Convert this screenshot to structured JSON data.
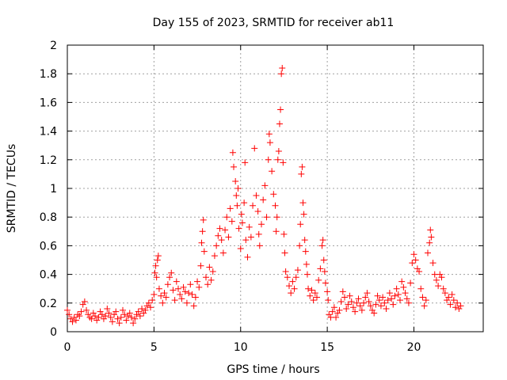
{
  "chart_data": {
    "type": "scatter",
    "title": "Day 155 of 2023, SRMTID for receiver ab11",
    "xlabel": "GPS time / hours",
    "ylabel": "SRMTID / TECUs",
    "xlim": [
      0,
      24
    ],
    "ylim": [
      0,
      2
    ],
    "xticks": [
      0,
      5,
      10,
      15,
      20
    ],
    "xtick_labels": [
      "0",
      "5",
      "10",
      "15",
      "20"
    ],
    "yticks": [
      0,
      0.2,
      0.4,
      0.6,
      0.8,
      1,
      1.2,
      1.4,
      1.6,
      1.8,
      2
    ],
    "ytick_labels": [
      "0",
      "0.2",
      "0.4",
      "0.6",
      "0.8",
      "1",
      "1.2",
      "1.4",
      "1.6",
      "1.8",
      "2"
    ],
    "grid": true,
    "marker": "plus",
    "color": "#ff0000",
    "series": [
      {
        "name": "SRMTID",
        "points": [
          [
            0.0,
            0.15
          ],
          [
            0.1,
            0.12
          ],
          [
            0.2,
            0.09
          ],
          [
            0.3,
            0.07
          ],
          [
            0.4,
            0.1
          ],
          [
            0.5,
            0.08
          ],
          [
            0.6,
            0.12
          ],
          [
            0.7,
            0.11
          ],
          [
            0.8,
            0.14
          ],
          [
            0.9,
            0.19
          ],
          [
            1.0,
            0.21
          ],
          [
            1.1,
            0.15
          ],
          [
            1.2,
            0.12
          ],
          [
            1.3,
            0.1
          ],
          [
            1.4,
            0.09
          ],
          [
            1.5,
            0.13
          ],
          [
            1.6,
            0.11
          ],
          [
            1.7,
            0.08
          ],
          [
            1.8,
            0.1
          ],
          [
            1.9,
            0.14
          ],
          [
            2.0,
            0.12
          ],
          [
            2.1,
            0.09
          ],
          [
            2.2,
            0.11
          ],
          [
            2.3,
            0.16
          ],
          [
            2.4,
            0.13
          ],
          [
            2.5,
            0.1
          ],
          [
            2.6,
            0.07
          ],
          [
            2.7,
            0.12
          ],
          [
            2.8,
            0.14
          ],
          [
            2.9,
            0.09
          ],
          [
            3.0,
            0.06
          ],
          [
            3.1,
            0.1
          ],
          [
            3.2,
            0.15
          ],
          [
            3.3,
            0.12
          ],
          [
            3.4,
            0.08
          ],
          [
            3.5,
            0.11
          ],
          [
            3.6,
            0.13
          ],
          [
            3.7,
            0.1
          ],
          [
            3.8,
            0.06
          ],
          [
            3.9,
            0.09
          ],
          [
            4.0,
            0.12
          ],
          [
            4.1,
            0.14
          ],
          [
            4.2,
            0.11
          ],
          [
            4.3,
            0.16
          ],
          [
            4.4,
            0.13
          ],
          [
            4.5,
            0.15
          ],
          [
            4.6,
            0.18
          ],
          [
            4.7,
            0.2
          ],
          [
            4.8,
            0.17
          ],
          [
            4.9,
            0.22
          ],
          [
            5.0,
            0.26
          ],
          [
            5.05,
            0.41
          ],
          [
            5.1,
            0.46
          ],
          [
            5.15,
            0.38
          ],
          [
            5.2,
            0.5
          ],
          [
            5.25,
            0.53
          ],
          [
            5.3,
            0.3
          ],
          [
            5.4,
            0.25
          ],
          [
            5.5,
            0.2
          ],
          [
            5.6,
            0.27
          ],
          [
            5.7,
            0.24
          ],
          [
            5.8,
            0.33
          ],
          [
            5.9,
            0.38
          ],
          [
            6.0,
            0.41
          ],
          [
            6.1,
            0.29
          ],
          [
            6.2,
            0.22
          ],
          [
            6.3,
            0.35
          ],
          [
            6.4,
            0.3
          ],
          [
            6.5,
            0.26
          ],
          [
            6.6,
            0.23
          ],
          [
            6.7,
            0.31
          ],
          [
            6.8,
            0.28
          ],
          [
            6.9,
            0.2
          ],
          [
            7.0,
            0.27
          ],
          [
            7.1,
            0.33
          ],
          [
            7.2,
            0.26
          ],
          [
            7.3,
            0.18
          ],
          [
            7.4,
            0.24
          ],
          [
            7.5,
            0.35
          ],
          [
            7.6,
            0.31
          ],
          [
            7.7,
            0.46
          ],
          [
            7.75,
            0.62
          ],
          [
            7.8,
            0.7
          ],
          [
            7.85,
            0.78
          ],
          [
            7.9,
            0.56
          ],
          [
            8.0,
            0.38
          ],
          [
            8.1,
            0.33
          ],
          [
            8.2,
            0.45
          ],
          [
            8.3,
            0.36
          ],
          [
            8.4,
            0.42
          ],
          [
            8.5,
            0.53
          ],
          [
            8.6,
            0.6
          ],
          [
            8.7,
            0.67
          ],
          [
            8.8,
            0.72
          ],
          [
            8.9,
            0.64
          ],
          [
            9.0,
            0.55
          ],
          [
            9.1,
            0.71
          ],
          [
            9.2,
            0.8
          ],
          [
            9.3,
            0.66
          ],
          [
            9.4,
            0.86
          ],
          [
            9.5,
            0.77
          ],
          [
            9.55,
            1.25
          ],
          [
            9.6,
            1.15
          ],
          [
            9.7,
            1.05
          ],
          [
            9.75,
            0.95
          ],
          [
            9.8,
            0.88
          ],
          [
            9.85,
            1.0
          ],
          [
            9.9,
            0.72
          ],
          [
            10.0,
            0.58
          ],
          [
            10.05,
            0.82
          ],
          [
            10.1,
            0.76
          ],
          [
            10.2,
            0.9
          ],
          [
            10.25,
            1.18
          ],
          [
            10.3,
            0.64
          ],
          [
            10.4,
            0.52
          ],
          [
            10.5,
            0.73
          ],
          [
            10.6,
            0.66
          ],
          [
            10.7,
            0.88
          ],
          [
            10.8,
            1.28
          ],
          [
            10.9,
            0.95
          ],
          [
            11.0,
            0.84
          ],
          [
            11.05,
            0.68
          ],
          [
            11.1,
            0.6
          ],
          [
            11.2,
            0.75
          ],
          [
            11.3,
            0.92
          ],
          [
            11.4,
            1.02
          ],
          [
            11.5,
            0.8
          ],
          [
            11.6,
            1.2
          ],
          [
            11.65,
            1.38
          ],
          [
            11.7,
            1.32
          ],
          [
            11.8,
            1.12
          ],
          [
            11.9,
            0.96
          ],
          [
            12.0,
            0.88
          ],
          [
            12.05,
            0.7
          ],
          [
            12.1,
            0.8
          ],
          [
            12.15,
            1.2
          ],
          [
            12.2,
            1.26
          ],
          [
            12.25,
            1.45
          ],
          [
            12.3,
            1.55
          ],
          [
            12.35,
            1.8
          ],
          [
            12.4,
            1.84
          ],
          [
            12.45,
            1.18
          ],
          [
            12.5,
            0.68
          ],
          [
            12.55,
            0.55
          ],
          [
            12.6,
            0.42
          ],
          [
            12.7,
            0.38
          ],
          [
            12.8,
            0.32
          ],
          [
            12.9,
            0.27
          ],
          [
            13.0,
            0.35
          ],
          [
            13.1,
            0.3
          ],
          [
            13.2,
            0.38
          ],
          [
            13.3,
            0.43
          ],
          [
            13.4,
            0.6
          ],
          [
            13.45,
            0.75
          ],
          [
            13.5,
            1.1
          ],
          [
            13.55,
            1.15
          ],
          [
            13.6,
            0.9
          ],
          [
            13.65,
            0.82
          ],
          [
            13.7,
            0.64
          ],
          [
            13.75,
            0.56
          ],
          [
            13.8,
            0.47
          ],
          [
            13.85,
            0.4
          ],
          [
            13.9,
            0.3
          ],
          [
            14.0,
            0.25
          ],
          [
            14.1,
            0.29
          ],
          [
            14.2,
            0.22
          ],
          [
            14.3,
            0.27
          ],
          [
            14.4,
            0.24
          ],
          [
            14.5,
            0.36
          ],
          [
            14.6,
            0.44
          ],
          [
            14.7,
            0.6
          ],
          [
            14.75,
            0.64
          ],
          [
            14.8,
            0.5
          ],
          [
            14.85,
            0.42
          ],
          [
            14.9,
            0.34
          ],
          [
            15.0,
            0.28
          ],
          [
            15.05,
            0.22
          ],
          [
            15.1,
            0.12
          ],
          [
            15.2,
            0.1
          ],
          [
            15.3,
            0.14
          ],
          [
            15.4,
            0.17
          ],
          [
            15.5,
            0.1
          ],
          [
            15.6,
            0.13
          ],
          [
            15.7,
            0.15
          ],
          [
            15.8,
            0.21
          ],
          [
            15.9,
            0.28
          ],
          [
            16.0,
            0.24
          ],
          [
            16.1,
            0.16
          ],
          [
            16.2,
            0.19
          ],
          [
            16.3,
            0.25
          ],
          [
            16.4,
            0.21
          ],
          [
            16.5,
            0.17
          ],
          [
            16.6,
            0.14
          ],
          [
            16.7,
            0.2
          ],
          [
            16.8,
            0.23
          ],
          [
            16.9,
            0.18
          ],
          [
            17.0,
            0.15
          ],
          [
            17.1,
            0.2
          ],
          [
            17.2,
            0.24
          ],
          [
            17.3,
            0.27
          ],
          [
            17.4,
            0.21
          ],
          [
            17.5,
            0.18
          ],
          [
            17.6,
            0.15
          ],
          [
            17.7,
            0.13
          ],
          [
            17.8,
            0.19
          ],
          [
            17.9,
            0.25
          ],
          [
            18.0,
            0.22
          ],
          [
            18.1,
            0.18
          ],
          [
            18.2,
            0.24
          ],
          [
            18.3,
            0.2
          ],
          [
            18.4,
            0.16
          ],
          [
            18.5,
            0.22
          ],
          [
            18.6,
            0.27
          ],
          [
            18.7,
            0.23
          ],
          [
            18.8,
            0.19
          ],
          [
            18.9,
            0.25
          ],
          [
            19.0,
            0.3
          ],
          [
            19.1,
            0.26
          ],
          [
            19.2,
            0.22
          ],
          [
            19.3,
            0.35
          ],
          [
            19.4,
            0.31
          ],
          [
            19.5,
            0.27
          ],
          [
            19.6,
            0.23
          ],
          [
            19.7,
            0.2
          ],
          [
            19.8,
            0.34
          ],
          [
            19.9,
            0.48
          ],
          [
            20.0,
            0.54
          ],
          [
            20.1,
            0.5
          ],
          [
            20.2,
            0.44
          ],
          [
            20.3,
            0.42
          ],
          [
            20.4,
            0.3
          ],
          [
            20.5,
            0.24
          ],
          [
            20.6,
            0.18
          ],
          [
            20.7,
            0.22
          ],
          [
            20.8,
            0.55
          ],
          [
            20.9,
            0.62
          ],
          [
            20.95,
            0.71
          ],
          [
            21.0,
            0.66
          ],
          [
            21.1,
            0.48
          ],
          [
            21.2,
            0.4
          ],
          [
            21.3,
            0.36
          ],
          [
            21.4,
            0.32
          ],
          [
            21.5,
            0.4
          ],
          [
            21.6,
            0.38
          ],
          [
            21.7,
            0.3
          ],
          [
            21.8,
            0.27
          ],
          [
            21.9,
            0.22
          ],
          [
            22.0,
            0.24
          ],
          [
            22.1,
            0.19
          ],
          [
            22.2,
            0.26
          ],
          [
            22.3,
            0.22
          ],
          [
            22.4,
            0.17
          ],
          [
            22.5,
            0.2
          ],
          [
            22.6,
            0.16
          ],
          [
            22.7,
            0.18
          ]
        ]
      }
    ]
  }
}
